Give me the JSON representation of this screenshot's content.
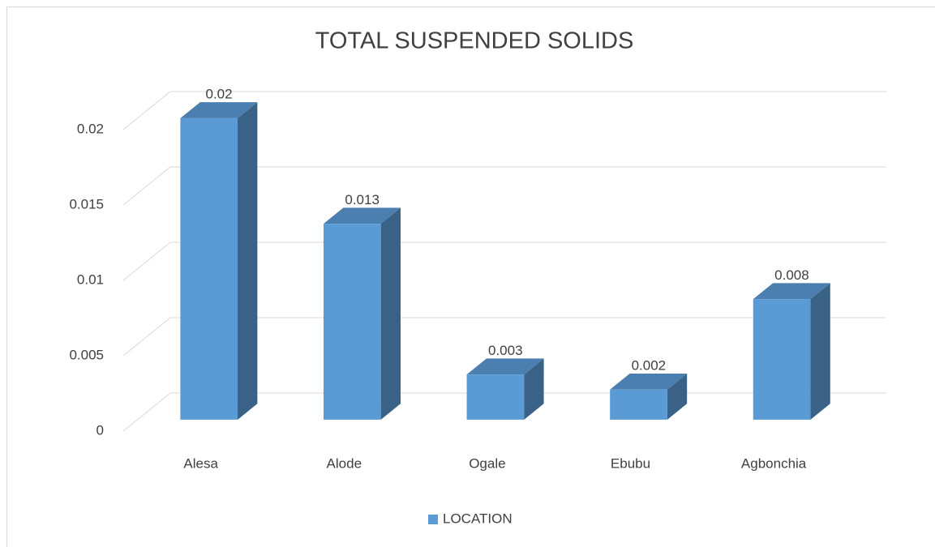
{
  "chart_data": {
    "type": "bar3d",
    "title": "TOTAL SUSPENDED SOLIDS",
    "categories": [
      "Alesa",
      "Alode",
      "Ogale",
      "Ebubu",
      "Agbonchia"
    ],
    "series": [
      {
        "name": "LOCATION",
        "color": "#5b9bd5",
        "values": [
          0.02,
          0.013,
          0.003,
          0.002,
          0.008
        ]
      }
    ],
    "ylim": [
      0,
      0.02
    ],
    "yticks": [
      0,
      0.005,
      0.01,
      0.015,
      0.02
    ],
    "grid": true,
    "legend": "bottom"
  }
}
